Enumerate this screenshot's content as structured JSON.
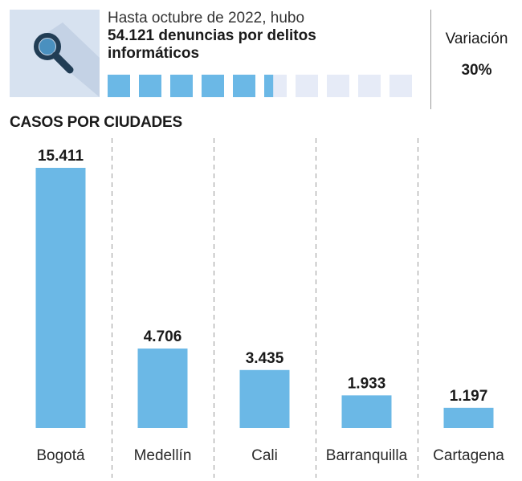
{
  "header": {
    "line1": "Hasta octubre de 2022, hubo",
    "line2": "54.121 denuncias por delitos",
    "line3": "informáticos",
    "progress_fraction": 0.54,
    "progress_segments": 10
  },
  "variation": {
    "label": "Variación",
    "value": "30%"
  },
  "colors": {
    "bar": "#6bb8e6",
    "progress_filled": "#6bb8e6",
    "progress_empty": "#e6ebf7",
    "icon_bg": "#d7e2f0",
    "icon_fg": "#213d55",
    "divider": "#9a9a9a"
  },
  "icons": {
    "header_icon": "magnifying-glass-icon"
  },
  "chart_data": {
    "type": "bar",
    "title": "CASOS POR CIUDADES",
    "categories": [
      "Bogotá",
      "Medellín",
      "Cali",
      "Barranquilla",
      "Cartagena"
    ],
    "values": [
      15411,
      4706,
      3435,
      1933,
      1197
    ],
    "value_labels": [
      "15.411",
      "4.706",
      "3.435",
      "1.933",
      "1.197"
    ],
    "ylim": [
      0,
      15411
    ],
    "grid": false,
    "legend": "none"
  }
}
